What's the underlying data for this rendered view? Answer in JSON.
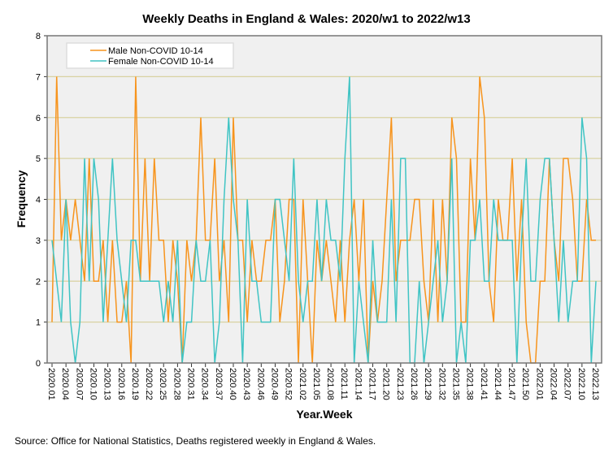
{
  "chart_data": {
    "type": "line",
    "title": "Weekly Deaths in England & Wales: 2020/w1 to 2022/w13",
    "xlabel": "Year.Week",
    "ylabel": "Frequency",
    "ylim": [
      0,
      8
    ],
    "yticks": [
      "0",
      "1",
      "2",
      "3",
      "4",
      "5",
      "6",
      "7",
      "8"
    ],
    "grid": true,
    "legend_position": "top-left",
    "tick_every": 3,
    "tick_labels": [
      "2020.01",
      "2020.04",
      "2020.07",
      "2020.10",
      "2020.13",
      "2020.16",
      "2020.19",
      "2020.22",
      "2020.25",
      "2020.28",
      "2020.31",
      "2020.34",
      "2020.37",
      "2020.40",
      "2020.43",
      "2020.46",
      "2020.49",
      "2020.52",
      "2021.02",
      "2021.05",
      "2021.08",
      "2021.11",
      "2021.14",
      "2021.17",
      "2021.20",
      "2021.23",
      "2021.26",
      "2021.29",
      "2021.32",
      "2021.35",
      "2021.38",
      "2021.41",
      "2021.44",
      "2021.47",
      "2021.50",
      "2022.01",
      "2022.04",
      "2022.07",
      "2022.10",
      "2022.13"
    ],
    "series": [
      {
        "name": "Male Non-COVID 10-14",
        "color": "#f7941d",
        "values": [
          1,
          7,
          3,
          4,
          3,
          4,
          3,
          2,
          5,
          2,
          2,
          3,
          1,
          3,
          1,
          1,
          2,
          0,
          7,
          2,
          5,
          2,
          5,
          3,
          3,
          1,
          3,
          2,
          0,
          3,
          2,
          3,
          6,
          3,
          3,
          5,
          2,
          3,
          1,
          6,
          3,
          3,
          1,
          3,
          2,
          2,
          3,
          3,
          4,
          1,
          2,
          4,
          4,
          0,
          4,
          2,
          0,
          3,
          2,
          3,
          2,
          1,
          3,
          1,
          3,
          4,
          2,
          4,
          0,
          2,
          1,
          2,
          4,
          6,
          2,
          3,
          3,
          3,
          4,
          4,
          2,
          1,
          4,
          1,
          4,
          2,
          6,
          5,
          1,
          1,
          5,
          3,
          7,
          6,
          2,
          1,
          4,
          3,
          3,
          5,
          2,
          4,
          1,
          0,
          0,
          2,
          2,
          5,
          3,
          2,
          5,
          5,
          4,
          2,
          2,
          4,
          3,
          3
        ]
      },
      {
        "name": "Female Non-COVID 10-14",
        "color": "#40c4c4",
        "values": [
          3,
          2,
          1,
          4,
          1,
          0,
          1,
          5,
          2,
          5,
          4,
          1,
          3,
          5,
          3,
          2,
          1,
          3,
          3,
          2,
          2,
          2,
          2,
          2,
          1,
          2,
          1,
          3,
          0,
          1,
          1,
          3,
          2,
          2,
          3,
          0,
          1,
          4,
          6,
          4,
          3,
          0,
          4,
          2,
          2,
          1,
          1,
          1,
          4,
          4,
          3,
          2,
          5,
          2,
          1,
          2,
          2,
          4,
          2,
          4,
          3,
          3,
          2,
          5,
          7,
          0,
          2,
          1,
          0,
          3,
          1,
          1,
          1,
          4,
          1,
          5,
          5,
          0,
          0,
          2,
          0,
          1,
          2,
          3,
          1,
          2,
          5,
          0,
          1,
          0,
          3,
          3,
          4,
          2,
          2,
          4,
          3,
          3,
          3,
          3,
          0,
          3,
          5,
          2,
          2,
          4,
          5,
          5,
          3,
          1,
          3,
          1,
          2,
          2,
          6,
          5,
          0,
          2
        ]
      }
    ]
  },
  "source": "Source: Office for National Statistics, Deaths registered weekly in England & Wales.",
  "colors": {
    "plot_bg": "#f0f0f0",
    "grid": "#d9d2a2"
  }
}
